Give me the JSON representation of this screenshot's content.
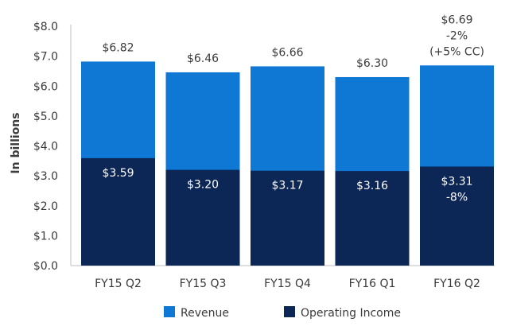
{
  "chart_data": {
    "type": "bar",
    "stacking": "overlay",
    "ylabel": "In billions",
    "ylim": [
      0,
      8
    ],
    "yticks": [
      "$0.0",
      "$1.0",
      "$2.0",
      "$3.0",
      "$4.0",
      "$5.0",
      "$6.0",
      "$7.0",
      "$8.0"
    ],
    "categories": [
      "FY15 Q2",
      "FY15 Q3",
      "FY15 Q4",
      "FY16 Q1",
      "FY16 Q2"
    ],
    "series": [
      {
        "name": "Revenue",
        "color": "#0f78d4",
        "values": [
          6.82,
          6.46,
          6.66,
          6.3,
          6.69
        ],
        "labels": [
          [
            "$6.82"
          ],
          [
            "$6.46"
          ],
          [
            "$6.66"
          ],
          [
            "$6.30"
          ],
          [
            "$6.69",
            "-2%",
            "(+5% CC)"
          ]
        ]
      },
      {
        "name": "Operating Income",
        "color": "#0c2655",
        "values": [
          3.59,
          3.2,
          3.17,
          3.16,
          3.31
        ],
        "labels": [
          [
            "$3.59"
          ],
          [
            "$3.20"
          ],
          [
            "$3.17"
          ],
          [
            "$3.16"
          ],
          [
            "$3.31",
            "-8%"
          ]
        ]
      }
    ],
    "grid": false,
    "legend": "bottom"
  }
}
